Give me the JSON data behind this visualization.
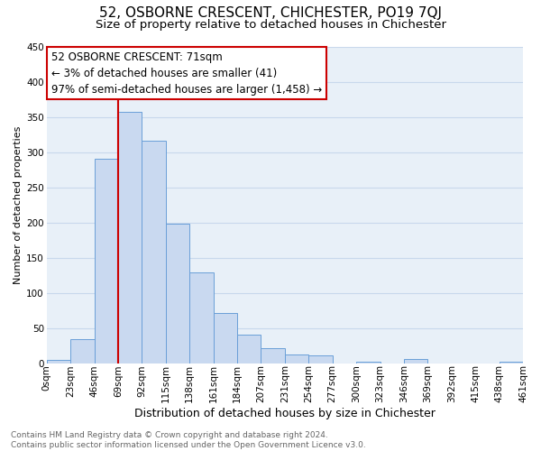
{
  "title": "52, OSBORNE CRESCENT, CHICHESTER, PO19 7QJ",
  "subtitle": "Size of property relative to detached houses in Chichester",
  "xlabel": "Distribution of detached houses by size in Chichester",
  "ylabel": "Number of detached properties",
  "bin_labels": [
    "0sqm",
    "23sqm",
    "46sqm",
    "69sqm",
    "92sqm",
    "115sqm",
    "138sqm",
    "161sqm",
    "184sqm",
    "207sqm",
    "231sqm",
    "254sqm",
    "277sqm",
    "300sqm",
    "323sqm",
    "346sqm",
    "369sqm",
    "392sqm",
    "415sqm",
    "438sqm",
    "461sqm"
  ],
  "bar_heights": [
    5,
    35,
    290,
    357,
    316,
    199,
    129,
    71,
    41,
    22,
    13,
    12,
    0,
    3,
    0,
    6,
    0,
    0,
    0,
    2
  ],
  "bar_color": "#c9d9f0",
  "bar_edge_color": "#6a9fd8",
  "red_line_x": 3,
  "annotation_text": "52 OSBORNE CRESCENT: 71sqm\n← 3% of detached houses are smaller (41)\n97% of semi-detached houses are larger (1,458) →",
  "annotation_box_color": "#ffffff",
  "annotation_box_edge_color": "#cc0000",
  "red_line_color": "#cc0000",
  "grid_color": "#c8d8ec",
  "background_color": "#e8f0f8",
  "footer_line1": "Contains HM Land Registry data © Crown copyright and database right 2024.",
  "footer_line2": "Contains public sector information licensed under the Open Government Licence v3.0.",
  "ylim": [
    0,
    450
  ],
  "yticks": [
    0,
    50,
    100,
    150,
    200,
    250,
    300,
    350,
    400,
    450
  ],
  "title_fontsize": 11,
  "subtitle_fontsize": 9.5,
  "xlabel_fontsize": 9,
  "ylabel_fontsize": 8,
  "tick_fontsize": 7.5,
  "annotation_fontsize": 8.5,
  "footer_fontsize": 6.5
}
